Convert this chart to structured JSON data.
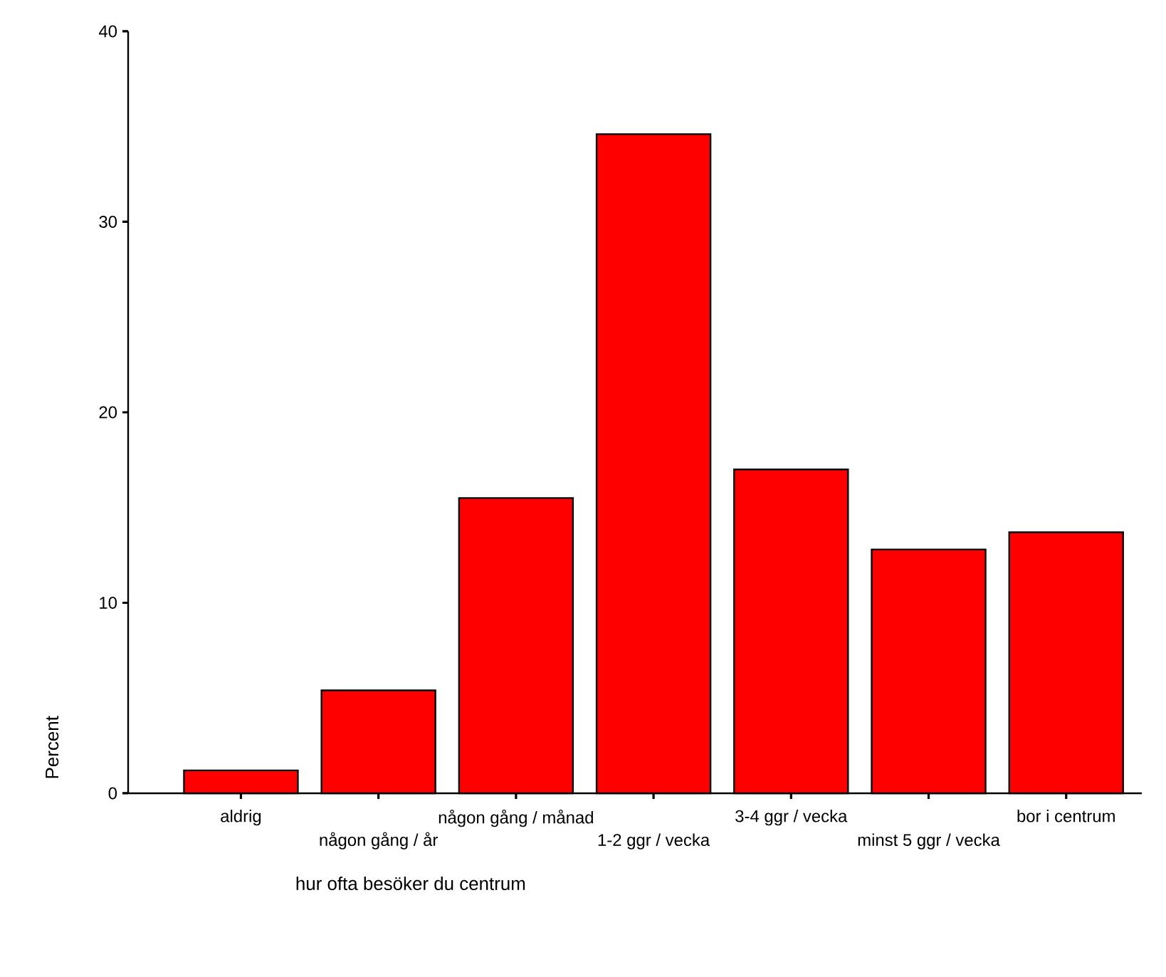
{
  "chart_data": {
    "type": "bar",
    "xlabel": "hur ofta besöker du centrum",
    "ylabel": "Percent",
    "categories": [
      "aldrig",
      "någon gång / år",
      "någon gång / månad",
      "1-2 ggr / vecka",
      "3-4 ggr / vecka",
      "minst 5 ggr / vecka",
      "bor i centrum"
    ],
    "values": [
      1.2,
      5.4,
      15.5,
      34.6,
      17.0,
      12.8,
      13.7
    ],
    "color": "#ff0000",
    "ylim": [
      0,
      40
    ],
    "yticks": [
      0,
      10,
      20,
      30,
      40
    ],
    "grid": false
  }
}
